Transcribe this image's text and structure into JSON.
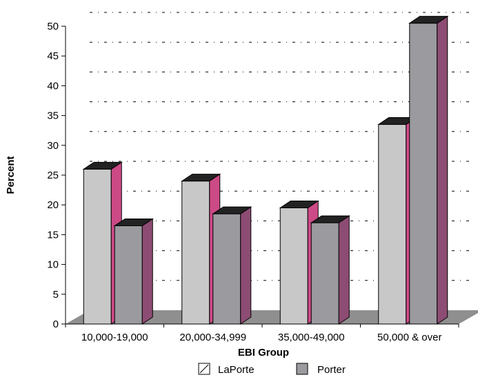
{
  "chart_data": {
    "type": "bar",
    "categories": [
      "10,000-19,000",
      "20,000-34,999",
      "35,000-49,000",
      "50,000 & over"
    ],
    "series": [
      {
        "name": "LaPorte",
        "values": [
          26,
          24,
          19.5,
          33.5
        ]
      },
      {
        "name": "Porter",
        "values": [
          16.5,
          18.5,
          17,
          50.5
        ]
      }
    ],
    "xlabel": "EBI Group",
    "ylabel": "Percent",
    "ylim": [
      0,
      50
    ],
    "yticks": [
      0,
      5,
      10,
      15,
      20,
      25,
      30,
      35,
      40,
      45,
      50
    ],
    "grid": true,
    "legend_position": "bottom",
    "colors": {
      "laporte_front": "#c8c8c8",
      "laporte_side": "#cc4a86",
      "porter_front": "#9a9a9f",
      "porter_side": "#8d4c73",
      "top": "#222222",
      "floor": "#8f8f8f",
      "grid": "#000000"
    }
  }
}
